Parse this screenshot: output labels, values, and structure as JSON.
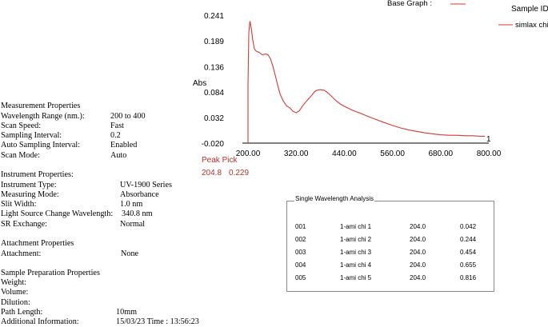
{
  "header": {
    "base_graph_label": "Base Graph :",
    "sample_id_label": "Sample ID",
    "legend_entry": "simlax chi",
    "line_color": "#d43a32"
  },
  "chart_data": {
    "type": "line",
    "ylabel": "Abs",
    "xlabel": "",
    "xlim": [
      200,
      800
    ],
    "ylim": [
      -0.02,
      0.241
    ],
    "x_ticks": [
      "200.00",
      "320.00",
      "440.00",
      "560.00",
      "680.00",
      "800.00"
    ],
    "y_ticks": [
      "0.241",
      "0.189",
      "0.136",
      "0.084",
      "0.032",
      "-0.020"
    ],
    "end_marker": "1",
    "series": [
      {
        "name": "simlax chi",
        "x": [
          200,
          202,
          204.8,
          208,
          212,
          216,
          220,
          228,
          236,
          244,
          250,
          256,
          262,
          268,
          274,
          280,
          288,
          296,
          304,
          312,
          320,
          328,
          336,
          346,
          356,
          366,
          372,
          380,
          390,
          400,
          410,
          420,
          430,
          440,
          460,
          480,
          500,
          520,
          540,
          560,
          580,
          600,
          620,
          640,
          660,
          680,
          700,
          720,
          740,
          760,
          780,
          790
        ],
        "y": [
          0.1,
          0.205,
          0.229,
          0.215,
          0.19,
          0.172,
          0.168,
          0.165,
          0.16,
          0.162,
          0.16,
          0.152,
          0.137,
          0.118,
          0.098,
          0.08,
          0.066,
          0.056,
          0.052,
          0.045,
          0.042,
          0.046,
          0.056,
          0.066,
          0.075,
          0.085,
          0.088,
          0.089,
          0.088,
          0.082,
          0.074,
          0.066,
          0.06,
          0.055,
          0.047,
          0.041,
          0.034,
          0.028,
          0.022,
          0.016,
          0.011,
          0.007,
          0.004,
          0.001,
          -0.001,
          -0.003,
          -0.004,
          -0.004,
          -0.005,
          -0.005,
          -0.006,
          -0.006
        ]
      }
    ]
  },
  "peak_pick": {
    "title": "Peak Pick",
    "wavelength": "204.8",
    "abs": "0.229"
  },
  "measurement": {
    "heading": "Measurement Properties",
    "rows": [
      {
        "label": "Wavelength Range (nm.):",
        "value": "200 to 400"
      },
      {
        "label": "Scan Speed:",
        "value": "Fast"
      },
      {
        "label": "Sampling Interval:",
        "value": "0.2"
      },
      {
        "label": "Auto Sampling Interval:",
        "value": "Enabled"
      },
      {
        "label": "Scan Mode:",
        "value": "Auto"
      }
    ]
  },
  "instrument": {
    "heading": "Instrument Properties:",
    "rows": [
      {
        "label": "Instrument Type:",
        "value": "UV-1900 Series"
      },
      {
        "label": "Measuring Mode:",
        "value": "Absorbance"
      },
      {
        "label": "Slit Width:",
        "value": "1.0 nm"
      },
      {
        "label": "Light Source Change Wavelength:",
        "value": "340.8 nm"
      },
      {
        "label": "SR Exchange:",
        "value": "Normal"
      }
    ]
  },
  "attachment": {
    "heading": "Attachment Properties",
    "label": "Attachment:",
    "value": "None"
  },
  "sample_prep": {
    "heading": "Sample Preparation Properties",
    "weight": "Weight:",
    "volume": "Volume:",
    "dilution": "Dilution:",
    "path_label": "Path Length:",
    "path_value": "10mm",
    "info_label": "Additional Information:",
    "info_value": "15/03/23 Time : 13:56:23"
  },
  "swa": {
    "title": "Single Wavelength Analysis",
    "rows": [
      {
        "no": "001",
        "sample": "1-ami chi 1",
        "wl": "204.0",
        "val": "0.042"
      },
      {
        "no": "002",
        "sample": "1-ami chi 2",
        "wl": "204.0",
        "val": "0.244"
      },
      {
        "no": "003",
        "sample": "1-ami chi 3",
        "wl": "204.0",
        "val": "0.454"
      },
      {
        "no": "004",
        "sample": "1-ami chi 4",
        "wl": "204.0",
        "val": "0.655"
      },
      {
        "no": "005",
        "sample": "1-ami chi 5",
        "wl": "204.0",
        "val": "0.816"
      }
    ]
  }
}
